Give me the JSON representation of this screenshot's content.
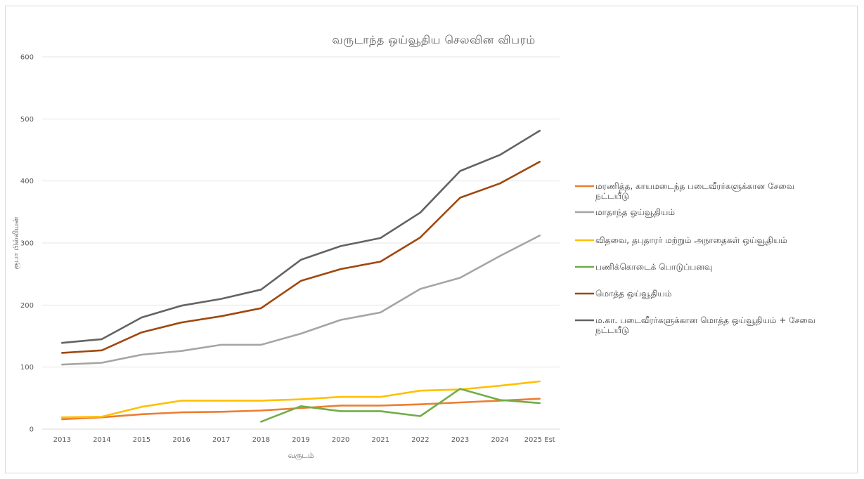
{
  "chart_data": {
    "type": "line",
    "title": "வருடாந்த ஒய்வூதிய செலவின விபரம்",
    "xlabel": "வருடம்",
    "ylabel": "ரூபா பில்லியன்",
    "ylim": [
      0,
      600
    ],
    "yticks": [
      "0",
      "100",
      "200",
      "300",
      "400",
      "500",
      "600"
    ],
    "categories": [
      "2013",
      "2014",
      "2015",
      "2016",
      "2017",
      "2018",
      "2019",
      "2020",
      "2021",
      "2022",
      "2023",
      "2024",
      "2025 Est"
    ],
    "grid": true,
    "legend_position": "right",
    "series": [
      {
        "name": "மரணித்த, காயமடைந்த படைவீரர்களுக்கான சேவை நட்டயீடு",
        "name_lines": [
          "மரணித்த, காயமடைந்த படைவீரர்களுக்கான சேவை",
          "நட்டயீடு"
        ],
        "color": "#ed7d31",
        "values": [
          16,
          19,
          24,
          27,
          28,
          30,
          34,
          38,
          38,
          40,
          43,
          46,
          49
        ]
      },
      {
        "name": "மாதாந்த ஒய்வூதியம்",
        "name_lines": [
          "மாதாந்த ஒய்வூதியம்"
        ],
        "color": "#a5a5a5",
        "values": [
          104,
          107,
          120,
          126,
          136,
          136,
          154,
          176,
          188,
          226,
          244,
          279,
          312
        ]
      },
      {
        "name": "விதவை, தபுதாரர் மற்றும் அநாதைகள் ஒய்வூதியம்",
        "name_lines": [
          "விதவை, தபுதாரர் மற்றும் அநாதைகள் ஒய்வூதியம்"
        ],
        "color": "#ffc000",
        "values": [
          19,
          20,
          36,
          46,
          46,
          46,
          48,
          52,
          52,
          62,
          64,
          70,
          77
        ]
      },
      {
        "name": "பணிக்கொடைக் பொடுப்பனவு",
        "name_lines": [
          "பணிக்கொடைக் பொடுப்பனவு"
        ],
        "color": "#70ad47",
        "values": [
          null,
          null,
          null,
          null,
          null,
          12,
          37,
          29,
          29,
          21,
          65,
          47,
          42
        ]
      },
      {
        "name": "மொத்த ஒய்வூதியம்",
        "name_lines": [
          "மொத்த ஒய்வூதியம்"
        ],
        "color": "#9e480e",
        "values": [
          123,
          127,
          156,
          172,
          182,
          195,
          239,
          258,
          270,
          309,
          373,
          396,
          431
        ]
      },
      {
        "name": "ம.கா. படைவீரர்களுக்கான மொத்த ஒய்வூதியம் + சேவை நட்டயீடு",
        "name_lines": [
          "ம.கா. படைவீரர்களுக்கான மொத்த ஒய்வூதியம் + சேவை",
          "நட்டயீடு"
        ],
        "color": "#636363",
        "values": [
          139,
          145,
          180,
          199,
          210,
          225,
          273,
          295,
          308,
          349,
          416,
          442,
          481
        ]
      }
    ]
  }
}
